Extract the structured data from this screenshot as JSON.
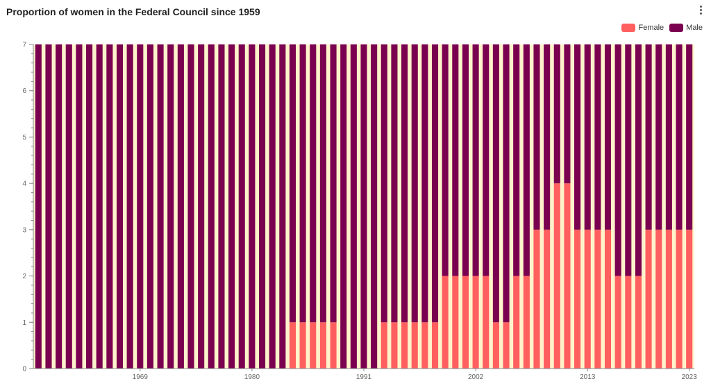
{
  "title": "Proportion of women in the Federal Council since 1959",
  "menu": {
    "icon": "more-vertical-icon"
  },
  "legend": [
    {
      "label": "Female",
      "color": "#ff5f5f"
    },
    {
      "label": "Male",
      "color": "#7a0050"
    }
  ],
  "colors": {
    "background": "#fff3cc",
    "female": "#ff5f5f",
    "male": "#7a0050",
    "axis": "#888888",
    "text": "#666666"
  },
  "chart_data": {
    "type": "bar",
    "stacked": true,
    "x": [
      1959,
      1960,
      1961,
      1962,
      1963,
      1964,
      1965,
      1966,
      1967,
      1968,
      1969,
      1970,
      1971,
      1972,
      1973,
      1974,
      1975,
      1976,
      1977,
      1978,
      1979,
      1980,
      1981,
      1982,
      1983,
      1984,
      1985,
      1986,
      1987,
      1988,
      1989,
      1990,
      1991,
      1992,
      1993,
      1994,
      1995,
      1996,
      1997,
      1998,
      1999,
      2000,
      2001,
      2002,
      2003,
      2004,
      2005,
      2006,
      2007,
      2008,
      2009,
      2010,
      2011,
      2012,
      2013,
      2014,
      2015,
      2016,
      2017,
      2018,
      2019,
      2020,
      2021,
      2022,
      2023
    ],
    "x_tick_labels": [
      "1969",
      "1980",
      "1991",
      "2002",
      "2013",
      "2023"
    ],
    "series": [
      {
        "name": "Female",
        "values": [
          0,
          0,
          0,
          0,
          0,
          0,
          0,
          0,
          0,
          0,
          0,
          0,
          0,
          0,
          0,
          0,
          0,
          0,
          0,
          0,
          0,
          0,
          0,
          0,
          0,
          1,
          1,
          1,
          1,
          1,
          0,
          0,
          0,
          0,
          1,
          1,
          1,
          1,
          1,
          1,
          2,
          2,
          2,
          2,
          2,
          1,
          1,
          2,
          2,
          3,
          3,
          4,
          4,
          3,
          3,
          3,
          3,
          2,
          2,
          2,
          3,
          3,
          3,
          3,
          3
        ]
      },
      {
        "name": "Male",
        "values": [
          7,
          7,
          7,
          7,
          7,
          7,
          7,
          7,
          7,
          7,
          7,
          7,
          7,
          7,
          7,
          7,
          7,
          7,
          7,
          7,
          7,
          7,
          7,
          7,
          7,
          6,
          6,
          6,
          6,
          6,
          7,
          7,
          7,
          7,
          6,
          6,
          6,
          6,
          6,
          6,
          5,
          5,
          5,
          5,
          5,
          6,
          6,
          5,
          5,
          4,
          4,
          3,
          3,
          4,
          4,
          4,
          4,
          5,
          5,
          5,
          4,
          4,
          4,
          4,
          4
        ]
      }
    ],
    "y_ticks": [
      "0",
      "1",
      "2",
      "3",
      "4",
      "5",
      "6",
      "7"
    ],
    "ylim": [
      0,
      7
    ],
    "xlabel": "",
    "ylabel": "",
    "grid": false
  }
}
